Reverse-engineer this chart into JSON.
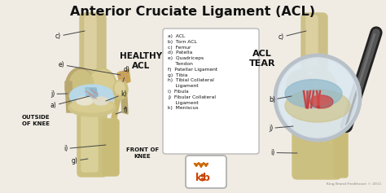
{
  "title": "Anterior Cruciate Ligament (ACL)",
  "title_fontsize": 11.5,
  "background_color": "#f0ece4",
  "border_color": "#bbbbbb",
  "healthy_label": "HEALTHY\nACL",
  "tear_label": "ACL\nTEAR",
  "outside_label": "OUTSIDE\nOF KNEE",
  "front_label": "FRONT OF\nKNEE",
  "legend_items": [
    "a)  ACL",
    "b)  Torn ACL",
    "c)  Femur",
    "d)  Patella",
    "e)  Quadriceps",
    "     Tendon",
    "f)  Patellar Ligament",
    "g)  Tibia",
    "h)  Tibial Collateral",
    "     Ligament",
    "i)  Fibula",
    "j)  Fibular Collateral",
    "     Ligament",
    "k)  Meniscus"
  ],
  "copyright": "King Brand Healthcare © 2011",
  "bone_color": "#d4c898",
  "bone_shadow": "#b8a870",
  "ligament_blue": "#a8c8d8",
  "ligament_red": "#cc4444",
  "tendon_color": "#c8a850",
  "meniscus_color": "#ffffff",
  "text_color": "#111111",
  "legend_bg": "#ffffff",
  "legend_border": "#aaaaaa",
  "mag_glass_color": "#dddddd",
  "handle_dark": "#333333",
  "handle_light": "#666666"
}
